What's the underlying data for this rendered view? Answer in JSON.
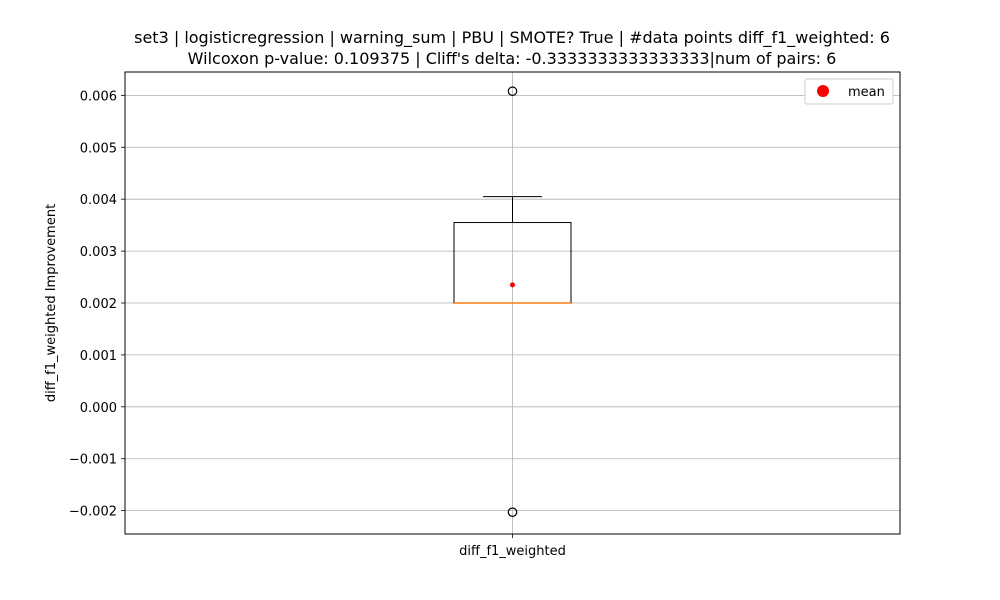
{
  "chart_data": {
    "type": "box",
    "title": "set3 | logisticregression | warning_sum | PBU | SMOTE? True | #data points diff_f1_weighted: 6",
    "subtitle": "Wilcoxon p-value: 0.109375 | Cliff's delta: -0.3333333333333333|num of pairs: 6",
    "ylabel": "diff_f1_weighted Improvement",
    "categories": [
      "diff_f1_weighted"
    ],
    "ylim": [
      -0.00245,
      0.00645
    ],
    "yticks": [
      -0.002,
      -0.001,
      0.0,
      0.001,
      0.002,
      0.003,
      0.004,
      0.005,
      0.006
    ],
    "ytick_labels": [
      "−0.002",
      "−0.001",
      "0.000",
      "0.001",
      "0.002",
      "0.003",
      "0.004",
      "0.005",
      "0.006"
    ],
    "grid": true,
    "legend": {
      "position": "top-right",
      "entries": [
        {
          "name": "mean",
          "color": "#ff0000"
        }
      ]
    },
    "box": {
      "q1": 0.002,
      "median": 0.002,
      "q3": 0.00355,
      "whisker_low": 0.002,
      "whisker_high": 0.00405,
      "mean": 0.00235,
      "outliers": [
        0.00608,
        -0.00203
      ]
    },
    "colors": {
      "box": "#000000",
      "median": "#ff7f0e",
      "mean": "#ff0000",
      "grid": "#b0b0b0"
    }
  }
}
